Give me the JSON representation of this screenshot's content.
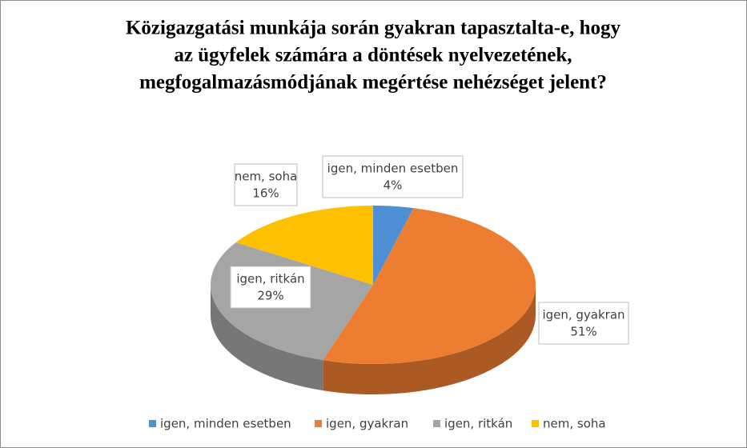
{
  "chart_data": {
    "type": "pie",
    "title": [
      "Közigazgatási munkája során gyakran tapasztalta-e, hogy",
      "az ügyfelek számára a döntések nyelvezetének,",
      "megfogalmazásmódjának megértése nehézséget jelent?"
    ],
    "categories": [
      "igen, minden esetben",
      "igen, gyakran",
      "igen, ritkán",
      "nem, soha"
    ],
    "values": [
      4,
      51,
      29,
      16
    ],
    "value_labels": [
      "4%",
      "51%",
      "29%",
      "16%"
    ],
    "colors": [
      "#4f8fd6",
      "#ed7d31",
      "#a5a5a5",
      "#ffc000"
    ],
    "legend": "bottom"
  }
}
